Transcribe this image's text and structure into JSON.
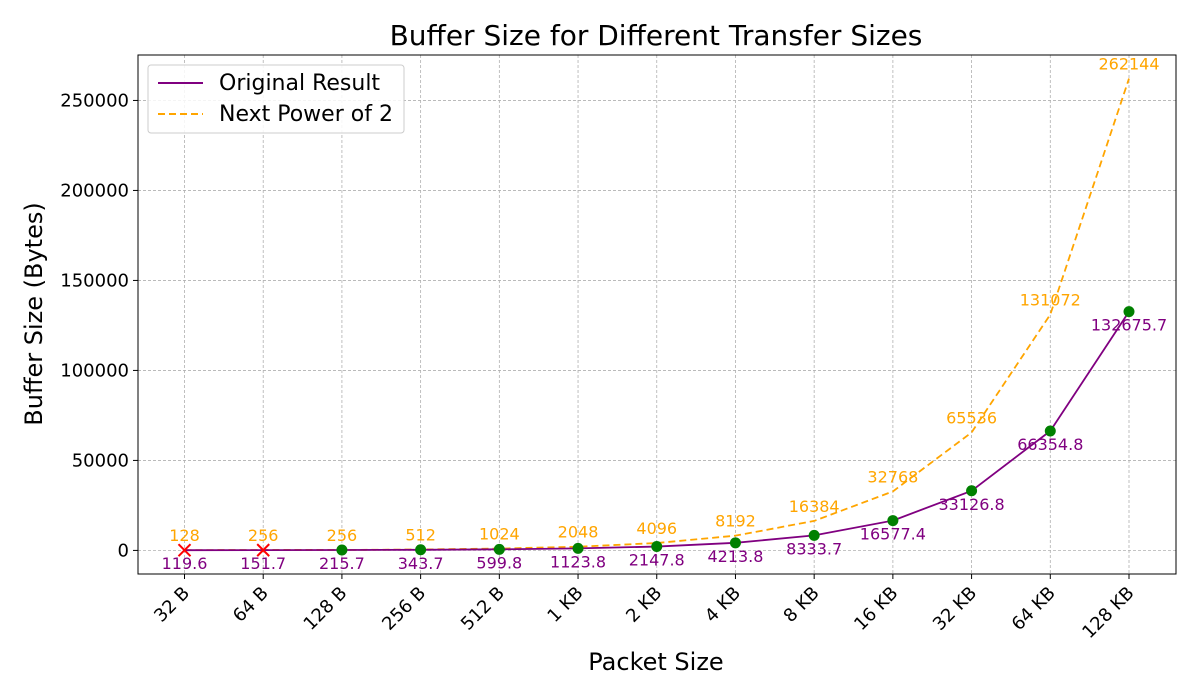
{
  "chart_data": {
    "type": "line",
    "title": "Buffer Size for Different Transfer Sizes",
    "xlabel": "Packet Size",
    "ylabel": "Buffer Size (Bytes)",
    "categories": [
      "32 B",
      "64 B",
      "128 B",
      "256 B",
      "512 B",
      "1 KB",
      "2 KB",
      "4 KB",
      "8 KB",
      "16 KB",
      "32 KB",
      "64 KB",
      "128 KB"
    ],
    "ylim": [
      -13107,
      275251
    ],
    "yticks": [
      0,
      50000,
      100000,
      150000,
      200000,
      250000
    ],
    "grid": true,
    "legend_position": "top-left",
    "series": [
      {
        "name": "Original Result",
        "color": "#800080",
        "line_style": "solid",
        "values": [
          119.6,
          151.7,
          215.7,
          343.7,
          599.8,
          1123.8,
          2147.8,
          4213.8,
          8333.7,
          16577.4,
          33126.8,
          66354.8,
          132675.7
        ],
        "labels": [
          "119.6",
          "151.7",
          "215.7",
          "343.7",
          "599.8",
          "1123.8",
          "2147.8",
          "4213.8",
          "8333.7",
          "16577.4",
          "33126.8",
          "66354.8",
          "132675.7"
        ],
        "marker_status": [
          "fail",
          "fail",
          "ok",
          "ok",
          "ok",
          "ok",
          "ok",
          "ok",
          "ok",
          "ok",
          "ok",
          "ok",
          "ok"
        ]
      },
      {
        "name": "Next Power of 2",
        "color": "#FFA500",
        "line_style": "dashed",
        "values": [
          128,
          256,
          256,
          512,
          1024,
          2048,
          4096,
          8192,
          16384,
          32768,
          65536,
          131072,
          262144
        ],
        "labels": [
          "128",
          "256",
          "256",
          "512",
          "1024",
          "2048",
          "4096",
          "8192",
          "16384",
          "32768",
          "65536",
          "131072",
          "262144"
        ]
      }
    ],
    "marker_colors": {
      "ok": "#008000",
      "fail": "#FF0000"
    }
  }
}
